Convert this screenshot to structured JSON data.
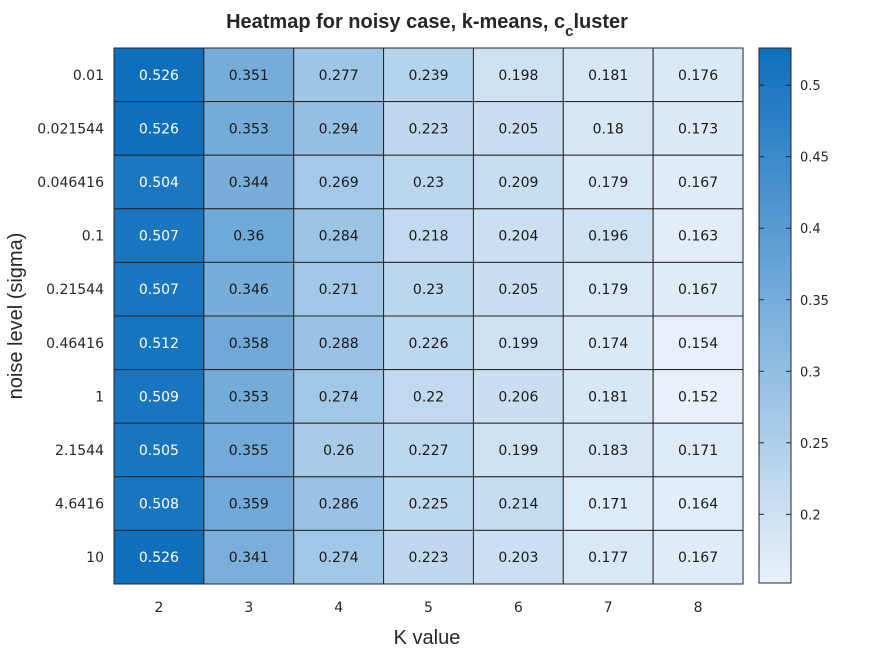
{
  "chart_data": {
    "type": "heatmap",
    "title_main": "Heatmap for noisy case, k-means, c",
    "title_sub": "c",
    "title_end": "luster",
    "xlabel": "K value",
    "ylabel": "noise level (sigma)",
    "x_categories": [
      "2",
      "3",
      "4",
      "5",
      "6",
      "7",
      "8"
    ],
    "y_categories": [
      "0.01",
      "0.021544",
      "0.046416",
      "0.1",
      "0.21544",
      "0.46416",
      "1",
      "2.1544",
      "4.6416",
      "10"
    ],
    "values": [
      [
        0.526,
        0.351,
        0.277,
        0.239,
        0.198,
        0.181,
        0.176
      ],
      [
        0.526,
        0.353,
        0.294,
        0.223,
        0.205,
        0.18,
        0.173
      ],
      [
        0.504,
        0.344,
        0.269,
        0.23,
        0.209,
        0.179,
        0.167
      ],
      [
        0.507,
        0.36,
        0.284,
        0.218,
        0.204,
        0.196,
        0.163
      ],
      [
        0.507,
        0.346,
        0.271,
        0.23,
        0.205,
        0.179,
        0.167
      ],
      [
        0.512,
        0.358,
        0.288,
        0.226,
        0.199,
        0.174,
        0.154
      ],
      [
        0.509,
        0.353,
        0.274,
        0.22,
        0.206,
        0.181,
        0.152
      ],
      [
        0.505,
        0.355,
        0.26,
        0.227,
        0.199,
        0.183,
        0.171
      ],
      [
        0.508,
        0.359,
        0.286,
        0.225,
        0.214,
        0.171,
        0.164
      ],
      [
        0.526,
        0.341,
        0.274,
        0.223,
        0.203,
        0.177,
        0.167
      ]
    ],
    "value_labels": [
      [
        "0.526",
        "0.351",
        "0.277",
        "0.239",
        "0.198",
        "0.181",
        "0.176"
      ],
      [
        "0.526",
        "0.353",
        "0.294",
        "0.223",
        "0.205",
        "0.18",
        "0.173"
      ],
      [
        "0.504",
        "0.344",
        "0.269",
        "0.23",
        "0.209",
        "0.179",
        "0.167"
      ],
      [
        "0.507",
        "0.36",
        "0.284",
        "0.218",
        "0.204",
        "0.196",
        "0.163"
      ],
      [
        "0.507",
        "0.346",
        "0.271",
        "0.23",
        "0.205",
        "0.179",
        "0.167"
      ],
      [
        "0.512",
        "0.358",
        "0.288",
        "0.226",
        "0.199",
        "0.174",
        "0.154"
      ],
      [
        "0.509",
        "0.353",
        "0.274",
        "0.22",
        "0.206",
        "0.181",
        "0.152"
      ],
      [
        "0.505",
        "0.355",
        "0.26",
        "0.227",
        "0.199",
        "0.183",
        "0.171"
      ],
      [
        "0.508",
        "0.359",
        "0.286",
        "0.225",
        "0.214",
        "0.171",
        "0.164"
      ],
      [
        "0.526",
        "0.341",
        "0.274",
        "0.223",
        "0.203",
        "0.177",
        "0.167"
      ]
    ],
    "colorbar": {
      "range": [
        0.152,
        0.526
      ],
      "ticks": [
        0.2,
        0.25,
        0.3,
        0.35,
        0.4,
        0.45,
        0.5
      ],
      "tick_labels": [
        "0.2",
        "0.25",
        "0.3",
        "0.35",
        "0.4",
        "0.45",
        "0.5"
      ],
      "low_color": "#e8f1fa",
      "high_color": "#0f6fbd"
    },
    "grid": true,
    "legend": "colorbar-right"
  }
}
